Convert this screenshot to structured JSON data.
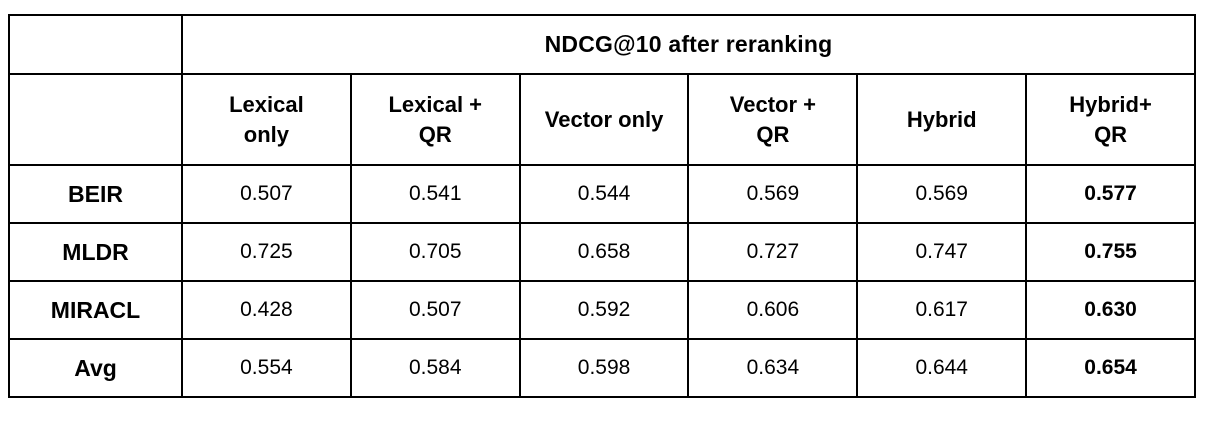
{
  "colors": {
    "border": "#000000",
    "background": "#ffffff",
    "text": "#000000"
  },
  "table": {
    "title": "NDCG@10 after reranking",
    "columns": [
      "Lexical\nonly",
      "Lexical +\nQR",
      "Vector only",
      "Vector +\nQR",
      "Hybrid",
      "Hybrid+\nQR"
    ],
    "rows": [
      {
        "label": "BEIR",
        "values": [
          "0.507",
          "0.541",
          "0.544",
          "0.569",
          "0.569",
          "0.577"
        ]
      },
      {
        "label": "MLDR",
        "values": [
          "0.725",
          "0.705",
          "0.658",
          "0.727",
          "0.747",
          "0.755"
        ]
      },
      {
        "label": "MIRACL",
        "values": [
          "0.428",
          "0.507",
          "0.592",
          "0.606",
          "0.617",
          "0.630"
        ]
      },
      {
        "label": "Avg",
        "values": [
          "0.554",
          "0.584",
          "0.598",
          "0.634",
          "0.644",
          "0.654"
        ]
      }
    ]
  },
  "chart_data": {
    "type": "table",
    "title": "NDCG@10 after reranking",
    "columns": [
      "Lexical only",
      "Lexical + QR",
      "Vector only",
      "Vector + QR",
      "Hybrid",
      "Hybrid+ QR"
    ],
    "row_labels": [
      "BEIR",
      "MLDR",
      "MIRACL",
      "Avg"
    ],
    "values": [
      [
        0.507,
        0.541,
        0.544,
        0.569,
        0.569,
        0.577
      ],
      [
        0.725,
        0.705,
        0.658,
        0.727,
        0.747,
        0.755
      ],
      [
        0.428,
        0.507,
        0.592,
        0.606,
        0.617,
        0.63
      ],
      [
        0.554,
        0.584,
        0.598,
        0.634,
        0.644,
        0.654
      ]
    ],
    "notes": "Last column (Hybrid+ QR) values are bold, indicating best scores per row; row labels and headers bold; black 2px grid borders on white background."
  }
}
